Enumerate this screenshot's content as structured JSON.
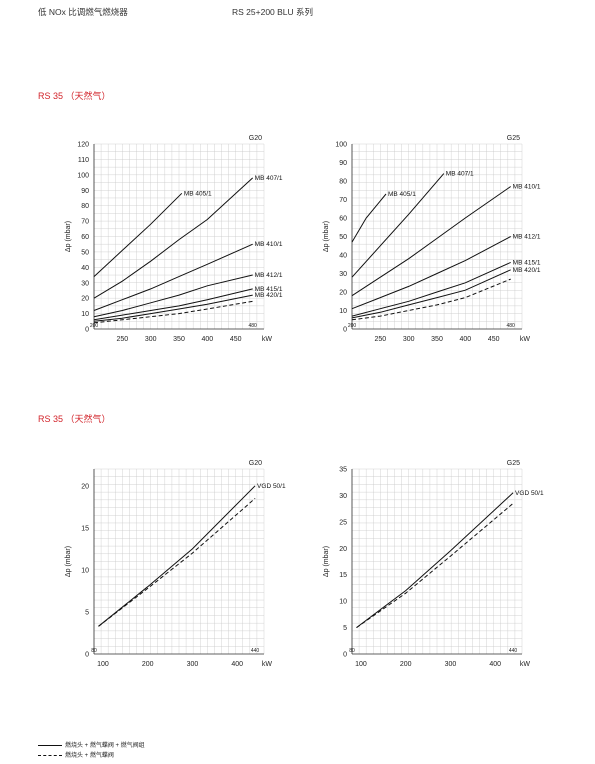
{
  "header": {
    "left": "低 NOx 比调燃气燃烧器",
    "right": "RS 25+200 BLU 系列"
  },
  "sections": [
    "RS 35 （天然气）",
    "RS 35 （天然气）"
  ],
  "legend": [
    {
      "label": "燃烧头 + 燃气蝶阀 + 燃气阀组",
      "style": "solid"
    },
    {
      "label": "燃烧头 + 燃气蝶阀",
      "style": "dashed"
    }
  ],
  "colors": {
    "section": "#d2232a",
    "grid": "#c8c8c8",
    "line": "#111111"
  },
  "chart_data": [
    {
      "type": "line",
      "gas": "G20",
      "xlabel": "kW",
      "ylabel": "Δp (mbar)",
      "xlim": [
        200,
        500
      ],
      "ylim": [
        0,
        120
      ],
      "xticks": [
        250,
        300,
        350,
        400,
        450
      ],
      "yticks": [
        0,
        10,
        20,
        30,
        40,
        50,
        60,
        70,
        80,
        90,
        100,
        110,
        120
      ],
      "range_marks": [
        "200",
        "480"
      ],
      "grid": true,
      "series": [
        {
          "name": "MB 405/1",
          "style": "solid",
          "x": [
            200,
            250,
            300,
            355
          ],
          "y": [
            34,
            51,
            68,
            88
          ]
        },
        {
          "name": "MB 407/1",
          "style": "solid",
          "x": [
            200,
            250,
            300,
            350,
            400,
            480
          ],
          "y": [
            20,
            31,
            44,
            58,
            71,
            98
          ]
        },
        {
          "name": "MB 410/1",
          "style": "solid",
          "x": [
            200,
            250,
            300,
            350,
            400,
            480
          ],
          "y": [
            12,
            19,
            26,
            34,
            42,
            55
          ]
        },
        {
          "name": "MB 412/1",
          "style": "solid",
          "x": [
            200,
            250,
            300,
            350,
            400,
            480
          ],
          "y": [
            8,
            12,
            17,
            22,
            28,
            35
          ]
        },
        {
          "name": "MB 415/1",
          "style": "solid",
          "x": [
            200,
            250,
            300,
            350,
            400,
            480
          ],
          "y": [
            6,
            9,
            12,
            15,
            19,
            26
          ]
        },
        {
          "name": "MB 420/1",
          "style": "solid",
          "x": [
            200,
            250,
            300,
            350,
            400,
            480
          ],
          "y": [
            5,
            7,
            10,
            13,
            16,
            22
          ]
        },
        {
          "name": "",
          "style": "dashed",
          "x": [
            200,
            250,
            300,
            350,
            400,
            480
          ],
          "y": [
            4,
            6,
            8,
            10,
            13,
            18
          ]
        }
      ]
    },
    {
      "type": "line",
      "gas": "G25",
      "xlabel": "kW",
      "ylabel": "Δp (mbar)",
      "xlim": [
        200,
        500
      ],
      "ylim": [
        0,
        100
      ],
      "xticks": [
        250,
        300,
        350,
        400,
        450
      ],
      "yticks": [
        0,
        10,
        20,
        30,
        40,
        50,
        60,
        70,
        80,
        90,
        100
      ],
      "range_marks": [
        "200",
        "480"
      ],
      "grid": true,
      "series": [
        {
          "name": "MB 405/1",
          "style": "solid",
          "x": [
            200,
            225,
            260
          ],
          "y": [
            47,
            60,
            73
          ]
        },
        {
          "name": "MB 407/1",
          "style": "solid",
          "x": [
            200,
            250,
            300,
            362
          ],
          "y": [
            28,
            45,
            62,
            84
          ]
        },
        {
          "name": "MB 410/1",
          "style": "solid",
          "x": [
            200,
            250,
            300,
            350,
            400,
            480
          ],
          "y": [
            18,
            28,
            38,
            49,
            60,
            77
          ]
        },
        {
          "name": "MB 412/1",
          "style": "solid",
          "x": [
            200,
            250,
            300,
            350,
            400,
            480
          ],
          "y": [
            11,
            17,
            23,
            30,
            37,
            50
          ]
        },
        {
          "name": "MB 415/1",
          "style": "solid",
          "x": [
            200,
            250,
            300,
            350,
            400,
            480
          ],
          "y": [
            7,
            11,
            15,
            20,
            25,
            36
          ]
        },
        {
          "name": "MB 420/1",
          "style": "solid",
          "x": [
            200,
            250,
            300,
            350,
            400,
            480
          ],
          "y": [
            6,
            9,
            13,
            17,
            21,
            32
          ]
        },
        {
          "name": "",
          "style": "dashed",
          "x": [
            200,
            250,
            300,
            350,
            400,
            480
          ],
          "y": [
            5,
            7,
            10,
            13,
            17,
            27
          ]
        }
      ]
    },
    {
      "type": "line",
      "gas": "G20",
      "xlabel": "kW",
      "ylabel": "Δp (mbar)",
      "xlim": [
        80,
        460
      ],
      "ylim": [
        0,
        22
      ],
      "xticks": [
        100,
        200,
        300,
        400
      ],
      "yticks": [
        0,
        5,
        10,
        15,
        20
      ],
      "range_marks": [
        "80",
        "440"
      ],
      "grid": true,
      "series": [
        {
          "name": "VGD 50/1",
          "style": "solid",
          "x": [
            90,
            200,
            300,
            440
          ],
          "y": [
            3.3,
            8.0,
            12.5,
            20.0
          ]
        },
        {
          "name": "",
          "style": "dashed",
          "x": [
            90,
            200,
            300,
            440
          ],
          "y": [
            3.3,
            7.8,
            12.0,
            18.5
          ]
        }
      ]
    },
    {
      "type": "line",
      "gas": "G25",
      "xlabel": "kW",
      "ylabel": "Δp (mbar)",
      "xlim": [
        80,
        460
      ],
      "ylim": [
        0,
        35
      ],
      "xticks": [
        100,
        200,
        300,
        400
      ],
      "yticks": [
        0,
        5,
        10,
        15,
        20,
        25,
        30,
        35
      ],
      "range_marks": [
        "80",
        "440"
      ],
      "grid": true,
      "series": [
        {
          "name": "VGD 50/1",
          "style": "solid",
          "x": [
            90,
            200,
            300,
            440
          ],
          "y": [
            5.0,
            12.0,
            19.5,
            30.5
          ]
        },
        {
          "name": "",
          "style": "dashed",
          "x": [
            90,
            200,
            300,
            440
          ],
          "y": [
            5.0,
            11.5,
            18.5,
            28.5
          ]
        }
      ]
    }
  ]
}
